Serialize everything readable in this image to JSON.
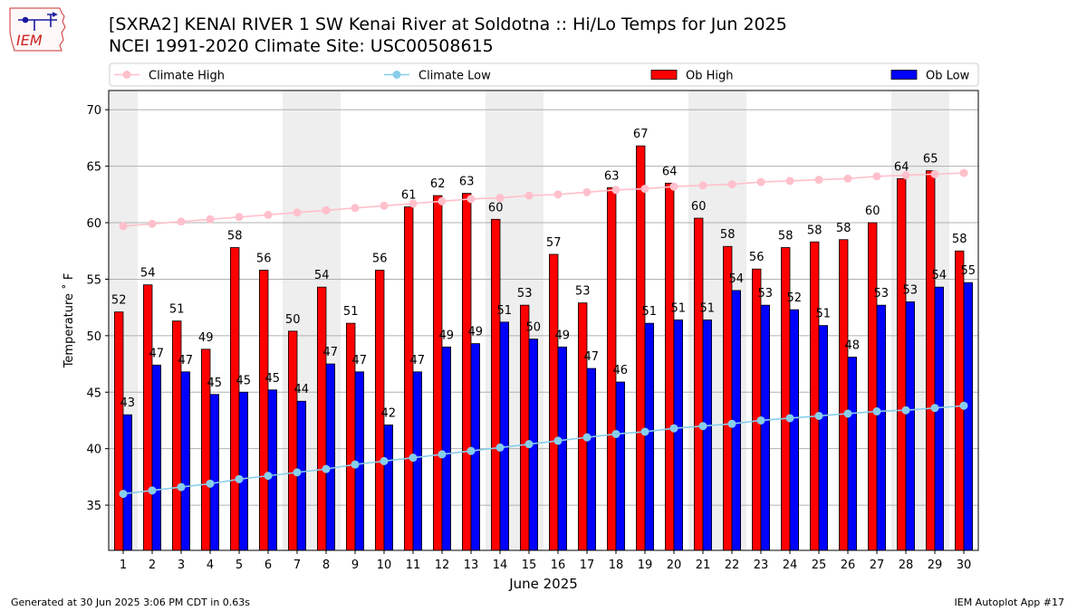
{
  "header": {
    "title_line1": "[SXRA2] KENAI RIVER 1 SW Kenai River at Soldotna :: Hi/Lo Temps for Jun 2025",
    "title_line2": "NCEI 1991-2020 Climate Site: USC00508615",
    "logo_text": "IEM"
  },
  "footer": {
    "generated": "Generated at 30 Jun 2025 3:06 PM CDT in 0.63s",
    "app": "IEM Autoplot App #17"
  },
  "colors": {
    "ob_high": "#ff0000",
    "ob_low": "#0000ff",
    "climate_high": "#ffc0cb",
    "climate_low": "#87ceeb",
    "weekend_shade": "#eeeeee",
    "grid": "#b0b0b0"
  },
  "chart_data": {
    "type": "bar",
    "title": "[SXRA2] KENAI RIVER 1 SW Kenai River at Soldotna :: Hi/Lo Temps for Jun 2025",
    "subtitle": "NCEI 1991-2020 Climate Site: USC00508615",
    "xlabel": "June 2025",
    "ylabel": "Temperature ˚ F",
    "ylim": [
      31,
      71.7
    ],
    "yticks": [
      35,
      40,
      45,
      50,
      55,
      60,
      65,
      70
    ],
    "grid": true,
    "legend_position": "top",
    "categories": [
      "1",
      "2",
      "3",
      "4",
      "5",
      "6",
      "7",
      "8",
      "9",
      "10",
      "11",
      "12",
      "13",
      "14",
      "15",
      "16",
      "17",
      "18",
      "19",
      "20",
      "21",
      "22",
      "23",
      "24",
      "25",
      "26",
      "27",
      "28",
      "29",
      "30"
    ],
    "weekend_days": [
      1,
      7,
      8,
      14,
      15,
      21,
      22,
      28,
      29
    ],
    "series": [
      {
        "name": "Ob High",
        "kind": "bar",
        "values": [
          52.1,
          54.5,
          51.3,
          48.8,
          57.8,
          55.8,
          50.4,
          54.3,
          51.1,
          55.8,
          61.4,
          62.4,
          62.6,
          60.3,
          52.7,
          57.2,
          52.9,
          63.1,
          66.8,
          63.5,
          60.4,
          57.9,
          55.9,
          57.8,
          58.3,
          58.5,
          60.0,
          63.9,
          64.6,
          57.5
        ],
        "labels": [
          "52",
          "54",
          "51",
          "49",
          "58",
          "56",
          "50",
          "54",
          "51",
          "56",
          "61",
          "62",
          "63",
          "60",
          "53",
          "57",
          "53",
          "63",
          "67",
          "64",
          "60",
          "58",
          "56",
          "58",
          "58",
          "58",
          "60",
          "64",
          "65",
          "58"
        ]
      },
      {
        "name": "Ob Low",
        "kind": "bar",
        "values": [
          43.0,
          47.4,
          46.8,
          44.8,
          45.0,
          45.2,
          44.2,
          47.5,
          46.8,
          42.1,
          46.8,
          49.0,
          49.3,
          51.2,
          49.7,
          49.0,
          47.1,
          45.9,
          51.1,
          51.4,
          51.4,
          54.0,
          52.7,
          52.3,
          50.9,
          48.1,
          52.7,
          53.0,
          54.3,
          54.7
        ],
        "labels": [
          "43",
          "47",
          "47",
          "45",
          "45",
          "45",
          "44",
          "47",
          "47",
          "42",
          "47",
          "49",
          "49",
          "51",
          "50",
          "49",
          "47",
          "46",
          "51",
          "51",
          "51",
          "54",
          "53",
          "52",
          "51",
          "48",
          "53",
          "53",
          "54",
          "55"
        ]
      },
      {
        "name": "Climate High",
        "kind": "line",
        "values": [
          59.7,
          59.9,
          60.1,
          60.3,
          60.5,
          60.7,
          60.9,
          61.1,
          61.3,
          61.5,
          61.7,
          61.9,
          62.1,
          62.2,
          62.4,
          62.5,
          62.7,
          62.9,
          63.0,
          63.2,
          63.3,
          63.4,
          63.6,
          63.7,
          63.8,
          63.9,
          64.1,
          64.2,
          64.3,
          64.4
        ]
      },
      {
        "name": "Climate Low",
        "kind": "line",
        "values": [
          36.0,
          36.3,
          36.6,
          36.9,
          37.3,
          37.6,
          37.9,
          38.2,
          38.6,
          38.9,
          39.2,
          39.5,
          39.8,
          40.1,
          40.4,
          40.7,
          41.0,
          41.3,
          41.5,
          41.8,
          42.0,
          42.2,
          42.5,
          42.7,
          42.9,
          43.1,
          43.3,
          43.4,
          43.6,
          43.8
        ]
      }
    ],
    "legend": [
      "Climate High",
      "Climate Low",
      "Ob High",
      "Ob Low"
    ]
  }
}
